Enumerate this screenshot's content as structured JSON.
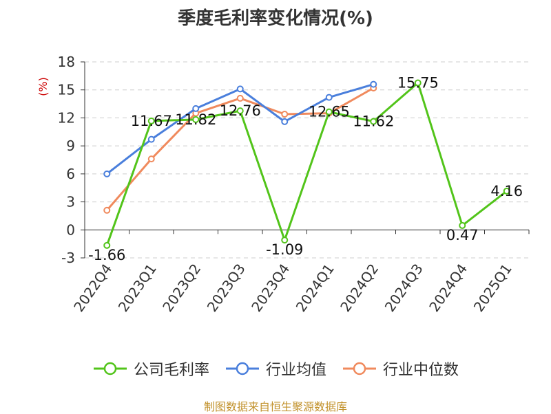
{
  "title": "季度毛利率变化情况(%)",
  "source": "制图数据来自恒生聚源数据库",
  "chart_data": {
    "type": "line",
    "title": "季度毛利率变化情况(%)",
    "ylabel": "(%)",
    "ylim": [
      -3,
      18
    ],
    "yticks": [
      -3,
      0,
      3,
      6,
      9,
      12,
      15,
      18
    ],
    "grid": true,
    "legend_position": "bottom",
    "categories": [
      "2022Q4",
      "2023Q1",
      "2023Q2",
      "2023Q3",
      "2023Q4",
      "2024Q1",
      "2024Q2",
      "2024Q3",
      "2024Q4",
      "2025Q1"
    ],
    "series": [
      {
        "name": "公司毛利率",
        "color": "#52c41a",
        "labeled": true,
        "values": [
          -1.66,
          11.67,
          11.82,
          12.76,
          -1.09,
          12.65,
          11.62,
          15.75,
          0.47,
          4.16
        ]
      },
      {
        "name": "行业均值",
        "color": "#4a7fdc",
        "labeled": false,
        "values": [
          6.0,
          9.7,
          13.0,
          15.1,
          11.6,
          14.2,
          15.6,
          null,
          null,
          null
        ]
      },
      {
        "name": "行业中位数",
        "color": "#f08a5d",
        "labeled": false,
        "values": [
          2.1,
          7.6,
          12.5,
          14.1,
          12.4,
          12.5,
          15.2,
          null,
          null,
          null
        ]
      }
    ]
  }
}
